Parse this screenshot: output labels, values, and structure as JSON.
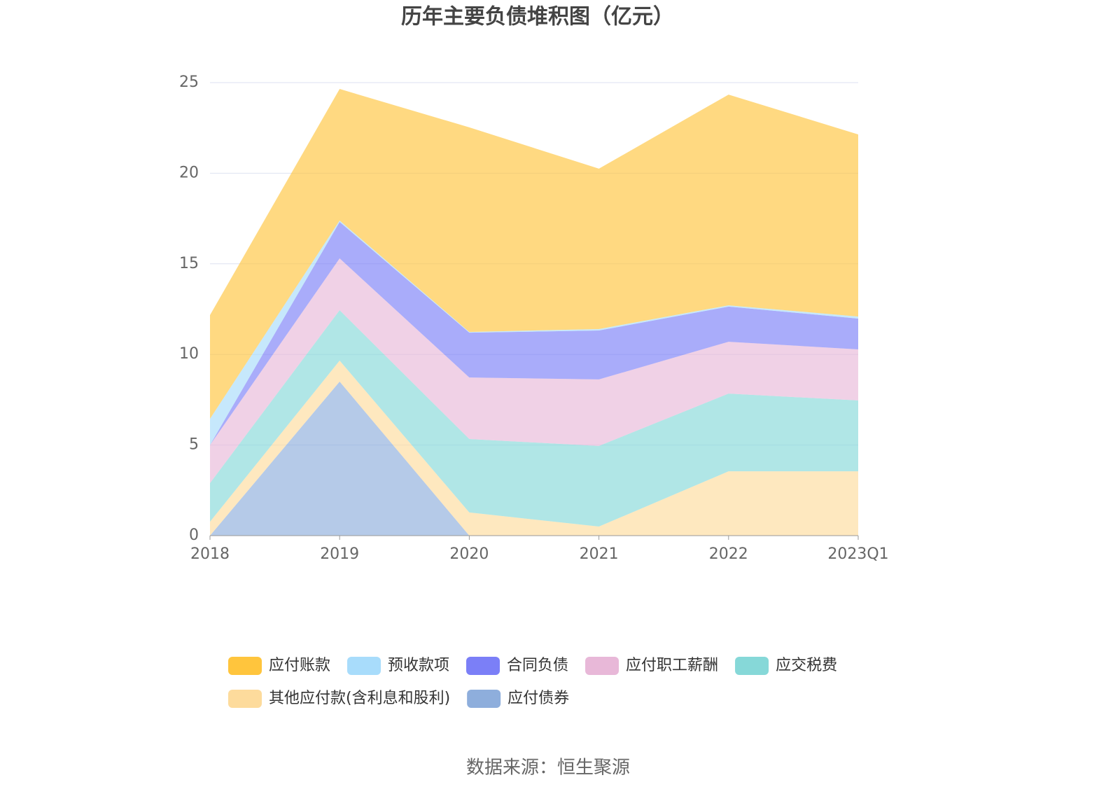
{
  "chart_data": {
    "type": "stacked_area",
    "title": "历年主要负债堆积图（亿元）",
    "source": "数据来源：恒生聚源",
    "categories": [
      "2018",
      "2019",
      "2020",
      "2021",
      "2022",
      "2023Q1"
    ],
    "ylim": [
      0,
      25
    ],
    "yticks": [
      0,
      5,
      10,
      15,
      20,
      25
    ],
    "grid": true,
    "series": [
      {
        "name": "应付债券",
        "color": "#8eaedc",
        "values": [
          0,
          8.5,
          0,
          0,
          0,
          0
        ]
      },
      {
        "name": "其他应付款(含利息和股利)",
        "color": "#fddb9c",
        "values": [
          0.77,
          1.16,
          1.28,
          0.5,
          3.55,
          3.55
        ]
      },
      {
        "name": "应交税费",
        "color": "#86d8d8",
        "values": [
          2.13,
          2.78,
          4.05,
          4.45,
          4.29,
          3.91
        ]
      },
      {
        "name": "应付职工薪酬",
        "color": "#e8b8d8",
        "values": [
          2.1,
          2.86,
          3.4,
          3.67,
          2.86,
          2.82
        ]
      },
      {
        "name": "合同负债",
        "color": "#7b7ff7",
        "values": [
          0,
          2.01,
          2.47,
          2.7,
          1.94,
          1.7
        ]
      },
      {
        "name": "预收款项",
        "color": "#a8dcfb",
        "values": [
          1.45,
          0.08,
          0.04,
          0.08,
          0.07,
          0.11
        ]
      },
      {
        "name": "应付账款",
        "color": "#ffc53d",
        "values": [
          5.72,
          7.26,
          11.29,
          8.85,
          11.63,
          10.05
        ]
      }
    ],
    "legend_order": [
      6,
      5,
      4,
      3,
      2,
      1,
      0
    ]
  }
}
